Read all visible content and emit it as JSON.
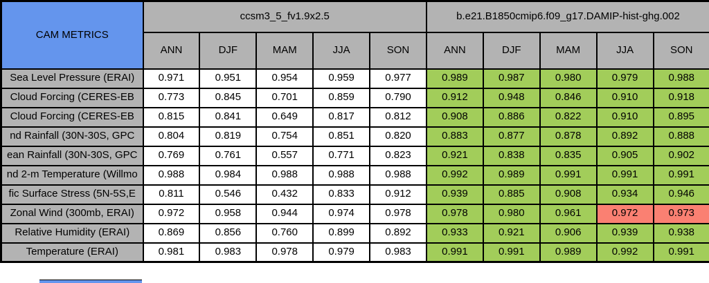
{
  "title": "CAM METRICS",
  "colors": {
    "header_blue": "#6495ED",
    "panel_gray": "#B3B3B3",
    "good_green": "#A2CD5A",
    "bad_red": "#FA8072",
    "cell_white": "#FFFFFF",
    "border_black": "#000000"
  },
  "models": [
    {
      "name": "ccsm3_5_fv1.9x2.5",
      "seasons": [
        "ANN",
        "DJF",
        "MAM",
        "JJA",
        "SON"
      ]
    },
    {
      "name": "b.e21.B1850cmip6.f09_g17.DAMIP-hist-ghg.002",
      "seasons": [
        "ANN",
        "DJF",
        "MAM",
        "JJA",
        "SON"
      ]
    }
  ],
  "chart_data": {
    "type": "table",
    "title": "CAM METRICS",
    "column_groups": [
      "ccsm3_5_fv1.9x2.5",
      "b.e21.B1850cmip6.f09_g17.DAMIP-hist-ghg.002"
    ],
    "columns": [
      "ANN",
      "DJF",
      "MAM",
      "JJA",
      "SON",
      "ANN",
      "DJF",
      "MAM",
      "JJA",
      "SON"
    ],
    "rows": [
      {
        "label": "Sea Level Pressure (ERAI)",
        "values": [
          "0.971",
          "0.951",
          "0.954",
          "0.959",
          "0.977",
          "0.989",
          "0.987",
          "0.980",
          "0.979",
          "0.988"
        ]
      },
      {
        "label": "Cloud Forcing (CERES-EB",
        "values": [
          "0.773",
          "0.845",
          "0.701",
          "0.859",
          "0.790",
          "0.912",
          "0.948",
          "0.846",
          "0.910",
          "0.918"
        ]
      },
      {
        "label": "Cloud Forcing (CERES-EB",
        "values": [
          "0.815",
          "0.841",
          "0.649",
          "0.817",
          "0.812",
          "0.908",
          "0.886",
          "0.822",
          "0.910",
          "0.895"
        ]
      },
      {
        "label": "nd Rainfall (30N-30S, GPC",
        "values": [
          "0.804",
          "0.819",
          "0.754",
          "0.851",
          "0.820",
          "0.883",
          "0.877",
          "0.878",
          "0.892",
          "0.888"
        ]
      },
      {
        "label": "ean Rainfall (30N-30S, GPC",
        "values": [
          "0.769",
          "0.761",
          "0.557",
          "0.771",
          "0.823",
          "0.921",
          "0.838",
          "0.835",
          "0.905",
          "0.902"
        ]
      },
      {
        "label": "nd 2-m Temperature (Willmo",
        "values": [
          "0.988",
          "0.984",
          "0.988",
          "0.988",
          "0.988",
          "0.992",
          "0.989",
          "0.991",
          "0.991",
          "0.991"
        ]
      },
      {
        "label": "fic Surface Stress (5N-5S,E",
        "values": [
          "0.811",
          "0.546",
          "0.432",
          "0.833",
          "0.912",
          "0.939",
          "0.885",
          "0.908",
          "0.934",
          "0.946"
        ]
      },
      {
        "label": "Zonal Wind (300mb, ERAI)",
        "values": [
          "0.972",
          "0.958",
          "0.944",
          "0.974",
          "0.978",
          "0.978",
          "0.980",
          "0.961",
          "0.972",
          "0.973"
        ]
      },
      {
        "label": "Relative Humidity (ERAI)",
        "values": [
          "0.869",
          "0.856",
          "0.760",
          "0.899",
          "0.892",
          "0.933",
          "0.921",
          "0.906",
          "0.939",
          "0.938"
        ]
      },
      {
        "label": "Temperature (ERAI)",
        "values": [
          "0.981",
          "0.983",
          "0.978",
          "0.979",
          "0.983",
          "0.991",
          "0.991",
          "0.989",
          "0.992",
          "0.991"
        ]
      }
    ],
    "red_cells": [
      [
        7,
        3
      ],
      [
        7,
        4
      ]
    ],
    "legend_position": "none",
    "grid": true
  }
}
